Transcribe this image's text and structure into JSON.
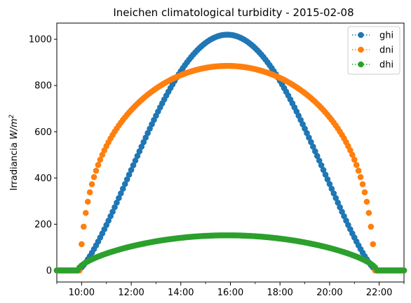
{
  "chart_data": {
    "type": "scatter",
    "title": "Ineichen climatological turbidity - 2015-02-08",
    "ylabel_text": "Irradiancia ",
    "ylabel_unit": "W/m",
    "ylabel_sup": "2",
    "xlabel": "",
    "xlim_hours": [
      9.0,
      23.0
    ],
    "ylim": [
      -50,
      1070
    ],
    "x_ticks": [
      {
        "hour": 10,
        "label": "10:00"
      },
      {
        "hour": 12,
        "label": "12:00"
      },
      {
        "hour": 14,
        "label": "14:00"
      },
      {
        "hour": 16,
        "label": "16:00"
      },
      {
        "hour": 18,
        "label": "18:00"
      },
      {
        "hour": 20,
        "label": "20:00"
      },
      {
        "hour": 22,
        "label": "22:00"
      }
    ],
    "x_minor_ticks_hours": [
      9,
      11,
      13,
      15,
      17,
      19,
      21,
      23
    ],
    "y_ticks": [
      0,
      200,
      400,
      600,
      800,
      1000
    ],
    "grid": false,
    "legend_position": "top-right",
    "sunrise_hour": 9.85,
    "sunset_hour": 21.9,
    "series": [
      {
        "name": "ghi",
        "color": "#1f77b4",
        "peak": 1020,
        "model": "ghi"
      },
      {
        "name": "dni",
        "color": "#ff7f0e",
        "peak": 885,
        "model": "dni"
      },
      {
        "name": "dhi",
        "color": "#2ca02c",
        "peak": 152,
        "model": "dhi"
      }
    ]
  }
}
